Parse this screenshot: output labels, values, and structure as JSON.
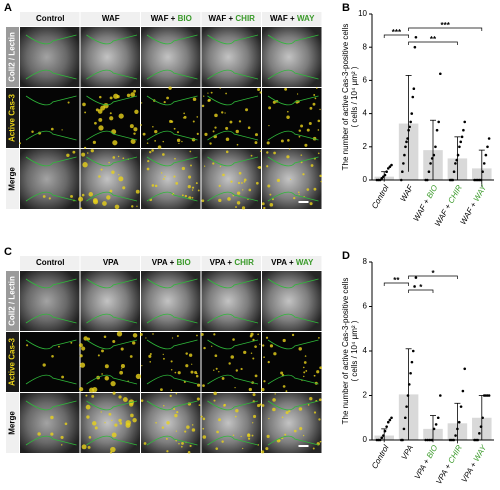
{
  "figure": {
    "panels": [
      {
        "label": "A",
        "columns": [
          [
            "Control"
          ],
          [
            "WAF"
          ],
          [
            "WAF + ",
            "BIO"
          ],
          [
            "WAF + ",
            "CHIR"
          ],
          [
            "WAF + ",
            "WAY"
          ]
        ],
        "rows": [
          "Coll2 / Lectin",
          "Active Cas-3",
          "Merge"
        ]
      },
      {
        "label": "C",
        "columns": [
          [
            "Control"
          ],
          [
            "VPA"
          ],
          [
            "VPA + ",
            "BIO"
          ],
          [
            "VPA + ",
            "CHIR"
          ],
          [
            "VPA + ",
            "WAY"
          ]
        ],
        "rows": [
          "Coll2 / Lectin",
          "Active Cas-3",
          "Merge"
        ]
      }
    ]
  },
  "chart_data": [
    {
      "type": "bar",
      "label": "B",
      "ylabel": [
        "The number of active Cas-3-positive cells",
        "( cells / 10⁴ μm² )"
      ],
      "categories": [
        [
          "Control"
        ],
        [
          "WAF"
        ],
        [
          "WAF + ",
          "BIO"
        ],
        [
          "WAF + ",
          "CHIR"
        ],
        [
          "WAF + ",
          "WAY"
        ]
      ],
      "values": [
        0.2,
        3.4,
        1.8,
        1.3,
        0.7
      ],
      "errors": [
        0.3,
        2.9,
        1.8,
        1.3,
        1.1
      ],
      "points": [
        [
          0,
          0,
          0,
          0.1,
          0.2,
          0.3,
          0.5,
          0.7,
          0.8,
          0.9
        ],
        [
          0,
          0.5,
          1,
          1.5,
          2,
          2.3,
          2.5,
          3,
          3.2,
          3.5,
          4,
          5,
          5.5,
          8,
          8.6
        ],
        [
          0,
          0,
          0.5,
          1,
          1.3,
          1.5,
          2,
          3,
          3.5,
          6.4
        ],
        [
          0,
          0,
          0,
          0.5,
          1,
          1.2,
          1.5,
          2,
          2.3,
          2.6,
          3,
          3.5
        ],
        [
          0,
          0,
          0,
          0,
          0,
          0.5,
          1,
          1.5,
          2,
          2.5
        ]
      ],
      "color": "#d9d9d9",
      "ylim": [
        0,
        10
      ],
      "yticks": [
        0,
        2,
        4,
        6,
        8,
        10
      ],
      "significance": [
        {
          "from": 1,
          "to": 4,
          "label": "***"
        },
        {
          "from": 0,
          "to": 1,
          "label": "***"
        },
        {
          "from": 1,
          "to": 3,
          "label": "**"
        }
      ]
    },
    {
      "type": "bar",
      "label": "D",
      "ylabel": [
        "The number of active Cas-3-positive cells",
        "( cells / 10⁴ μm² )"
      ],
      "categories": [
        [
          "Control"
        ],
        [
          "VPA"
        ],
        [
          "VPA + ",
          "BIO"
        ],
        [
          "VPA + ",
          "CHIR"
        ],
        [
          "VPA + ",
          "WAY"
        ]
      ],
      "values": [
        0.2,
        2.05,
        0.5,
        0.75,
        1.0
      ],
      "errors": [
        0.3,
        2.05,
        0.6,
        0.9,
        1.0
      ],
      "points": [
        [
          0,
          0,
          0,
          0.1,
          0.2,
          0.4,
          0.6,
          0.8,
          0.9,
          1
        ],
        [
          0,
          0,
          0.5,
          1,
          1.5,
          2,
          2.5,
          3,
          3.5,
          4,
          6.9,
          7.3
        ],
        [
          0,
          0,
          0,
          0,
          0.5,
          0.7,
          1,
          2
        ],
        [
          0,
          0,
          0,
          0.2,
          0.5,
          0.8,
          1.5,
          2.2,
          3.2
        ],
        [
          0,
          0,
          0,
          0.3,
          0.6,
          1,
          2,
          2,
          2,
          2
        ]
      ],
      "color": "#d9d9d9",
      "ylim": [
        0,
        8
      ],
      "yticks": [
        0,
        2,
        4,
        6,
        8
      ],
      "significance": [
        {
          "from": 1,
          "to": 3,
          "label": "*"
        },
        {
          "from": 0,
          "to": 1,
          "label": "**"
        },
        {
          "from": 1,
          "to": 2,
          "label": "*"
        }
      ]
    }
  ]
}
